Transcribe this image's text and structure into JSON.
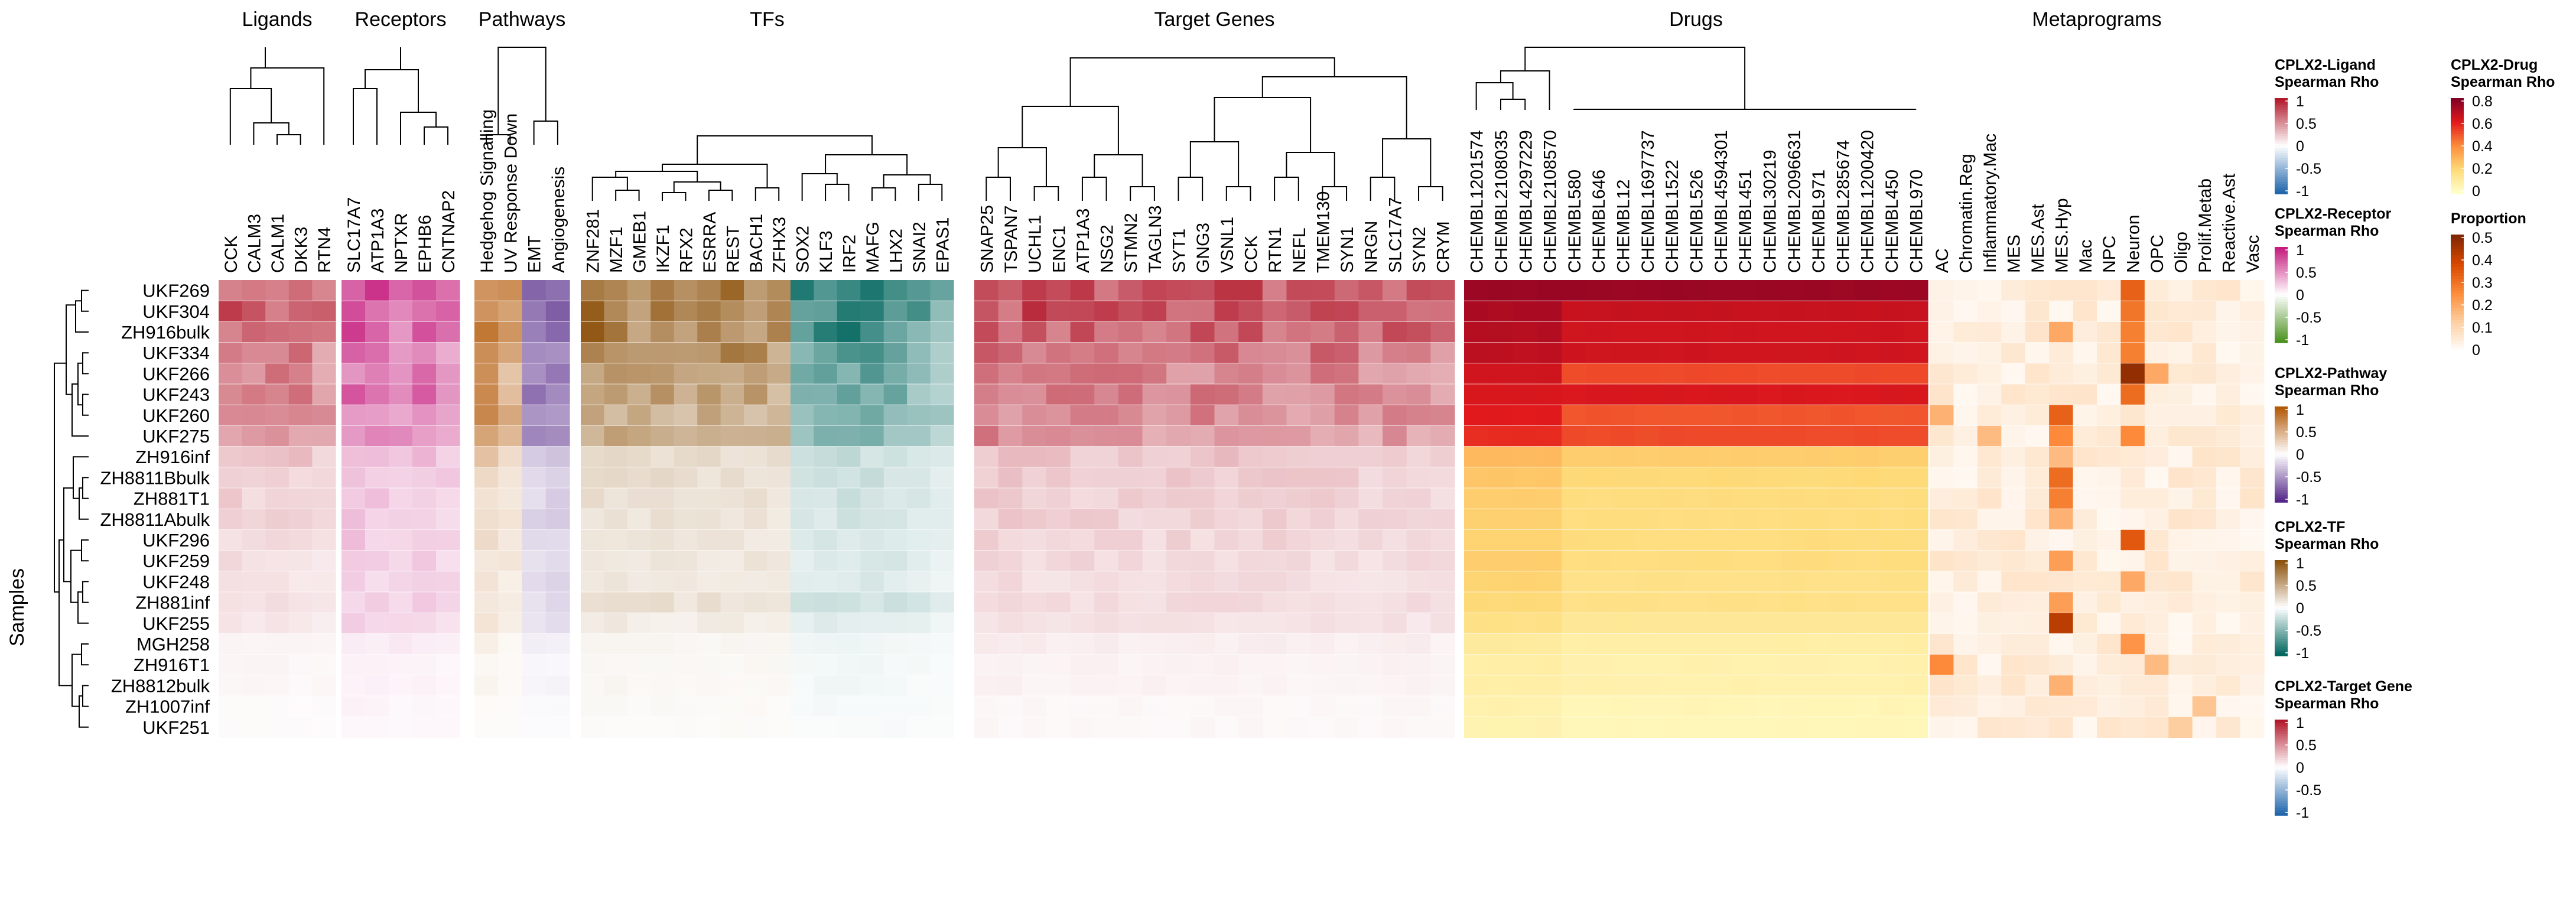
{
  "chart_data": {
    "type": "heatmap",
    "ylabel": "Samples",
    "samples": [
      "UKF269",
      "UKF304",
      "ZH916bulk",
      "UKF334",
      "UKF266",
      "UKF243",
      "UKF260",
      "UKF275",
      "ZH916inf",
      "ZH8811Bbulk",
      "ZH881T1",
      "ZH8811Abulk",
      "UKF296",
      "UKF259",
      "UKF248",
      "ZH881inf",
      "UKF255",
      "MGH258",
      "ZH916T1",
      "ZH8812bulk",
      "ZH1007inf",
      "UKF251"
    ],
    "blocks": [
      {
        "key": "lig",
        "title": "Ligands",
        "palette": "red",
        "columns": [
          "CCK",
          "CALM3",
          "CALM1",
          "DKK3",
          "RTN4"
        ],
        "base": [
          0.72,
          0.7,
          0.68,
          0.55,
          0.52,
          0.52,
          0.48,
          0.46,
          0.26,
          0.2,
          0.2,
          0.18,
          0.15,
          0.14,
          0.12,
          0.14,
          0.1,
          0.05,
          0.04,
          0.04,
          0.02,
          0.02
        ],
        "col_factor": [
          1.0,
          0.95,
          1.0,
          1.0,
          0.85
        ]
      },
      {
        "key": "rec",
        "title": "Receptors",
        "palette": "magenta",
        "columns": [
          "SLC17A7",
          "ATP1A3",
          "NPTXR",
          "EPHB6",
          "CNTNAP2"
        ],
        "base": [
          0.8,
          0.7,
          0.7,
          0.58,
          0.58,
          0.62,
          0.58,
          0.56,
          0.3,
          0.28,
          0.26,
          0.24,
          0.24,
          0.22,
          0.2,
          0.22,
          0.18,
          0.1,
          0.06,
          0.06,
          0.05,
          0.04
        ],
        "col_factor": [
          1.0,
          0.9,
          0.85,
          0.95,
          0.8
        ]
      },
      {
        "key": "path",
        "title": "Pathways",
        "palette": "brownpurple",
        "columns": [
          "Hedgehog Signalling",
          "UV Response Down",
          "EMT",
          "Angiogenesis"
        ],
        "base": [
          0.8,
          0.8,
          0.75,
          0.65,
          0.62,
          0.62,
          0.6,
          0.6,
          0.3,
          0.25,
          0.22,
          0.22,
          0.2,
          0.18,
          0.18,
          0.18,
          0.16,
          0.08,
          0.05,
          0.06,
          0.04,
          0.03
        ],
        "col_factor": [
          1.0,
          0.7,
          -0.85,
          -1.0
        ]
      },
      {
        "key": "tf",
        "title": "TFs",
        "palette": "brownteal",
        "columns": [
          "ZNF281",
          "MZF1",
          "GMEB1",
          "IKZF1",
          "RFX2",
          "ESRRA",
          "REST",
          "BACH1",
          "ZFHX3",
          "SOX2",
          "KLF3",
          "IRF2",
          "MAFG",
          "LHX2",
          "SNAI2",
          "EPAS1"
        ],
        "base": [
          0.85,
          0.82,
          0.78,
          0.7,
          0.6,
          0.6,
          0.52,
          0.5,
          0.22,
          0.22,
          0.2,
          0.18,
          0.16,
          0.16,
          0.14,
          0.2,
          0.12,
          0.06,
          0.05,
          0.05,
          0.04,
          0.03
        ],
        "col_factor": [
          1.0,
          0.95,
          0.85,
          0.9,
          0.8,
          0.85,
          0.9,
          0.85,
          0.8,
          -0.85,
          -0.95,
          -1.0,
          -0.95,
          -0.85,
          -0.75,
          -0.6
        ]
      },
      {
        "key": "tg",
        "title": "Target Genes",
        "palette": "red",
        "columns": [
          "SNAP25",
          "TSPAN7",
          "UCHL1",
          "ENC1",
          "ATP1A3",
          "NSG2",
          "STMN2",
          "TAGLN3",
          "SYT1",
          "GNG3",
          "VSNL1",
          "CCK",
          "RTN1",
          "NEFL",
          "TMEM130",
          "SYN1",
          "NRGN",
          "SLC17A7",
          "SYN2",
          "CRYM"
        ],
        "base": [
          0.8,
          0.78,
          0.74,
          0.66,
          0.58,
          0.58,
          0.55,
          0.5,
          0.26,
          0.24,
          0.22,
          0.22,
          0.2,
          0.18,
          0.16,
          0.17,
          0.14,
          0.08,
          0.06,
          0.06,
          0.04,
          0.04
        ],
        "col_factor": [
          1.0,
          0.95,
          0.95,
          0.9,
          0.95,
          0.9,
          0.9,
          0.85,
          0.9,
          0.9,
          0.95,
          0.9,
          0.9,
          0.85,
          0.9,
          0.85,
          0.8,
          0.9,
          0.85,
          0.8
        ]
      },
      {
        "key": "drug",
        "title": "Drugs",
        "palette": "ylorrd",
        "columns": [
          "CHEMBL1201574",
          "CHEMBL2108035",
          "CHEMBL4297229",
          "CHEMBL2108570",
          "CHEMBL580",
          "CHEMBL646",
          "CHEMBL12",
          "CHEMBL1697737",
          "CHEMBL1522",
          "CHEMBL526",
          "CHEMBL4594301",
          "CHEMBL451",
          "CHEMBL30219",
          "CHEMBL2096631",
          "CHEMBL971",
          "CHEMBL285674",
          "CHEMBL1200420",
          "CHEMBL450",
          "CHEMBL970"
        ],
        "lead_cols": 4,
        "lead": [
          0.84,
          0.8,
          0.78,
          0.76,
          0.72,
          0.7,
          0.68,
          0.64,
          0.32,
          0.28,
          0.26,
          0.25,
          0.24,
          0.26,
          0.24,
          0.22,
          0.18,
          0.12,
          0.1,
          0.1,
          0.08,
          0.07
        ],
        "rest": [
          0.84,
          0.74,
          0.72,
          0.72,
          0.58,
          0.7,
          0.56,
          0.58,
          0.26,
          0.22,
          0.2,
          0.2,
          0.2,
          0.2,
          0.18,
          0.18,
          0.14,
          0.1,
          0.08,
          0.08,
          0.06,
          0.05
        ]
      },
      {
        "key": "meta",
        "title": "Metaprograms",
        "palette": "orange",
        "columns": [
          "AC",
          "Chromatin.Reg",
          "Inflammatory.Mac",
          "MES",
          "MES.Ast",
          "MES.Hyp",
          "Mac",
          "NPC",
          "Neuron",
          "OPC",
          "Oligo",
          "Prolif.Metab",
          "Reactive.Ast",
          "Vasc"
        ],
        "highlights": [
          [
            0,
            8,
            0.36
          ],
          [
            1,
            8,
            0.32
          ],
          [
            2,
            5,
            0.22
          ],
          [
            2,
            8,
            0.3
          ],
          [
            3,
            8,
            0.3
          ],
          [
            4,
            8,
            0.52
          ],
          [
            4,
            9,
            0.22
          ],
          [
            5,
            8,
            0.34
          ],
          [
            6,
            0,
            0.2
          ],
          [
            6,
            5,
            0.36
          ],
          [
            7,
            2,
            0.18
          ],
          [
            7,
            5,
            0.28
          ],
          [
            7,
            8,
            0.28
          ],
          [
            8,
            5,
            0.18
          ],
          [
            9,
            5,
            0.34
          ],
          [
            10,
            5,
            0.3
          ],
          [
            11,
            5,
            0.2
          ],
          [
            12,
            8,
            0.38
          ],
          [
            13,
            5,
            0.24
          ],
          [
            14,
            8,
            0.22
          ],
          [
            15,
            5,
            0.24
          ],
          [
            16,
            5,
            0.46
          ],
          [
            17,
            8,
            0.26
          ],
          [
            18,
            0,
            0.28
          ],
          [
            18,
            9,
            0.18
          ],
          [
            19,
            5,
            0.2
          ],
          [
            20,
            11,
            0.16
          ],
          [
            21,
            10,
            0.14
          ]
        ]
      }
    ],
    "legends": [
      {
        "title": [
          "CPLX2-Ligand",
          "Spearman Rho"
        ],
        "palette": "red",
        "ticks": [
          "1",
          "0.5",
          "0",
          "-0.5",
          "-1"
        ]
      },
      {
        "title": [
          "CPLX2-Receptor",
          "Spearman Rho"
        ],
        "palette": "magenta",
        "ticks": [
          "1",
          "0.5",
          "0",
          "-0.5",
          "-1"
        ]
      },
      {
        "title": [
          "CPLX2-Pathway",
          "Spearman Rho"
        ],
        "palette": "brownpurple",
        "ticks": [
          "1",
          "0.5",
          "0",
          "-0.5",
          "-1"
        ]
      },
      {
        "title": [
          "CPLX2-TF",
          "Spearman Rho"
        ],
        "palette": "brownteal",
        "ticks": [
          "1",
          "0.5",
          "0",
          "-0.5",
          "-1"
        ]
      },
      {
        "title": [
          "CPLX2-Target Gene",
          "Spearman Rho"
        ],
        "palette": "red",
        "ticks": [
          "1",
          "0.5",
          "0",
          "-0.5",
          "-1"
        ]
      },
      {
        "title": [
          "CPLX2-Drug",
          "Spearman Rho"
        ],
        "palette": "ylorrd",
        "ticks": [
          "0.8",
          "0.6",
          "0.4",
          "0.2",
          "0"
        ]
      },
      {
        "title": [
          "Proportion"
        ],
        "palette": "orange",
        "ticks": [
          "0.5",
          "0.4",
          "0.3",
          "0.2",
          "0.1",
          "0"
        ]
      }
    ]
  },
  "palettes": {
    "red": {
      "pos": "#b2182b",
      "mid": "#ffffff",
      "neg": "#2166ac"
    },
    "magenta": {
      "pos": "#c51b7d",
      "mid": "#ffffff",
      "neg": "#4d9221"
    },
    "brownpurple": {
      "pos": "#b35806",
      "mid": "#ffffff",
      "neg": "#542788"
    },
    "brownteal": {
      "pos": "#8c510a",
      "mid": "#ffffff",
      "neg": "#01665e"
    },
    "ylorrd": {
      "stops": [
        "#ffffcc",
        "#fed976",
        "#fd8d3c",
        "#e31a1c",
        "#800026"
      ]
    },
    "orange": {
      "stops": [
        "#ffffff",
        "#fdd0a2",
        "#fd8d3c",
        "#d94801",
        "#7f2704"
      ]
    }
  }
}
